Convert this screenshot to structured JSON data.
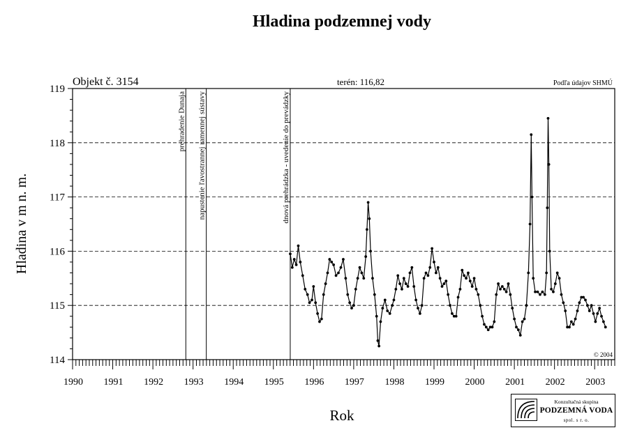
{
  "chart_data": {
    "type": "scatter",
    "title": "Hladina podzemnej vody",
    "ylabel": "Hladina v m n. m.",
    "xlabel": "Rok",
    "object_label": "Objekt č. 3154",
    "terrain_label": "terén: 116,82",
    "source_label": "Podľa údajov SHMÚ",
    "copyright": "© 2004",
    "xlim": [
      1990,
      2003.5
    ],
    "ylim": [
      114,
      119
    ],
    "yticks": [
      114,
      115,
      116,
      117,
      118,
      119
    ],
    "xtick_labels": [
      {
        "x": 1990,
        "label": "1990"
      },
      {
        "x": 1991,
        "label": "1991"
      },
      {
        "x": 1992,
        "label": "1992"
      },
      {
        "x": 1993,
        "label": "1993"
      },
      {
        "x": 1994,
        "label": "1994"
      },
      {
        "x": 1995,
        "label": "1995"
      },
      {
        "x": 1996,
        "label": "1996"
      },
      {
        "x": 1997,
        "label": "1997"
      },
      {
        "x": 1998,
        "label": "1998"
      },
      {
        "x": 1999,
        "label": "1999"
      },
      {
        "x": 2000,
        "label": "2000"
      },
      {
        "x": 2001,
        "label": "2001"
      },
      {
        "x": 2002,
        "label": "2002"
      },
      {
        "x": 2003,
        "label": "2003"
      }
    ],
    "grid": {
      "horizontal_dashed": [
        115,
        116,
        117,
        118
      ]
    },
    "event_lines": [
      {
        "x": 1992.82,
        "label": "prehradenie Dunaja"
      },
      {
        "x": 1993.33,
        "label": "napustenie ľavostrannej ramennej sústavy"
      },
      {
        "x": 1995.42,
        "label": "dnová prehrádzka - uvedenie do prevádzky"
      }
    ],
    "series": [
      {
        "points": [
          [
            1995.42,
            115.95
          ],
          [
            1995.47,
            115.7
          ],
          [
            1995.52,
            115.85
          ],
          [
            1995.57,
            115.75
          ],
          [
            1995.62,
            116.1
          ],
          [
            1995.67,
            115.8
          ],
          [
            1995.73,
            115.55
          ],
          [
            1995.79,
            115.3
          ],
          [
            1995.85,
            115.2
          ],
          [
            1995.9,
            115.05
          ],
          [
            1995.96,
            115.1
          ],
          [
            1996.0,
            115.35
          ],
          [
            1996.05,
            115.05
          ],
          [
            1996.1,
            114.85
          ],
          [
            1996.15,
            114.7
          ],
          [
            1996.2,
            114.75
          ],
          [
            1996.25,
            115.2
          ],
          [
            1996.3,
            115.4
          ],
          [
            1996.35,
            115.6
          ],
          [
            1996.4,
            115.85
          ],
          [
            1996.45,
            115.8
          ],
          [
            1996.5,
            115.75
          ],
          [
            1996.56,
            115.55
          ],
          [
            1996.62,
            115.6
          ],
          [
            1996.68,
            115.7
          ],
          [
            1996.74,
            115.85
          ],
          [
            1996.8,
            115.5
          ],
          [
            1996.85,
            115.2
          ],
          [
            1996.9,
            115.05
          ],
          [
            1996.95,
            114.95
          ],
          [
            1997.0,
            115.0
          ],
          [
            1997.05,
            115.3
          ],
          [
            1997.1,
            115.5
          ],
          [
            1997.15,
            115.7
          ],
          [
            1997.2,
            115.6
          ],
          [
            1997.25,
            115.5
          ],
          [
            1997.3,
            115.9
          ],
          [
            1997.33,
            116.4
          ],
          [
            1997.36,
            116.9
          ],
          [
            1997.39,
            116.6
          ],
          [
            1997.42,
            116.0
          ],
          [
            1997.47,
            115.5
          ],
          [
            1997.52,
            115.2
          ],
          [
            1997.57,
            114.8
          ],
          [
            1997.6,
            114.35
          ],
          [
            1997.63,
            114.25
          ],
          [
            1997.67,
            114.7
          ],
          [
            1997.72,
            114.95
          ],
          [
            1997.78,
            115.1
          ],
          [
            1997.84,
            114.9
          ],
          [
            1997.9,
            114.85
          ],
          [
            1997.96,
            115.0
          ],
          [
            1998.0,
            115.1
          ],
          [
            1998.05,
            115.3
          ],
          [
            1998.1,
            115.55
          ],
          [
            1998.15,
            115.4
          ],
          [
            1998.2,
            115.3
          ],
          [
            1998.25,
            115.5
          ],
          [
            1998.3,
            115.4
          ],
          [
            1998.35,
            115.35
          ],
          [
            1998.4,
            115.6
          ],
          [
            1998.45,
            115.7
          ],
          [
            1998.5,
            115.35
          ],
          [
            1998.55,
            115.1
          ],
          [
            1998.6,
            114.95
          ],
          [
            1998.65,
            114.85
          ],
          [
            1998.7,
            115.0
          ],
          [
            1998.75,
            115.5
          ],
          [
            1998.8,
            115.6
          ],
          [
            1998.85,
            115.55
          ],
          [
            1998.9,
            115.7
          ],
          [
            1998.95,
            116.05
          ],
          [
            1999.0,
            115.8
          ],
          [
            1999.05,
            115.6
          ],
          [
            1999.1,
            115.7
          ],
          [
            1999.15,
            115.5
          ],
          [
            1999.2,
            115.35
          ],
          [
            1999.25,
            115.4
          ],
          [
            1999.3,
            115.45
          ],
          [
            1999.35,
            115.2
          ],
          [
            1999.4,
            115.0
          ],
          [
            1999.45,
            114.85
          ],
          [
            1999.5,
            114.8
          ],
          [
            1999.55,
            114.8
          ],
          [
            1999.6,
            115.15
          ],
          [
            1999.65,
            115.3
          ],
          [
            1999.7,
            115.65
          ],
          [
            1999.75,
            115.55
          ],
          [
            1999.8,
            115.5
          ],
          [
            1999.85,
            115.6
          ],
          [
            1999.9,
            115.45
          ],
          [
            1999.95,
            115.35
          ],
          [
            2000.0,
            115.5
          ],
          [
            2000.05,
            115.3
          ],
          [
            2000.1,
            115.2
          ],
          [
            2000.15,
            115.0
          ],
          [
            2000.2,
            114.8
          ],
          [
            2000.25,
            114.65
          ],
          [
            2000.3,
            114.6
          ],
          [
            2000.35,
            114.55
          ],
          [
            2000.4,
            114.6
          ],
          [
            2000.45,
            114.6
          ],
          [
            2000.5,
            114.7
          ],
          [
            2000.55,
            115.2
          ],
          [
            2000.6,
            115.4
          ],
          [
            2000.65,
            115.3
          ],
          [
            2000.7,
            115.35
          ],
          [
            2000.75,
            115.3
          ],
          [
            2000.8,
            115.25
          ],
          [
            2000.85,
            115.4
          ],
          [
            2000.9,
            115.2
          ],
          [
            2000.95,
            114.95
          ],
          [
            2001.0,
            114.75
          ],
          [
            2001.05,
            114.6
          ],
          [
            2001.1,
            114.55
          ],
          [
            2001.15,
            114.45
          ],
          [
            2001.2,
            114.7
          ],
          [
            2001.25,
            114.75
          ],
          [
            2001.3,
            115.0
          ],
          [
            2001.35,
            115.6
          ],
          [
            2001.39,
            116.5
          ],
          [
            2001.42,
            118.15
          ],
          [
            2001.44,
            117.0
          ],
          [
            2001.47,
            115.5
          ],
          [
            2001.52,
            115.25
          ],
          [
            2001.58,
            115.25
          ],
          [
            2001.64,
            115.2
          ],
          [
            2001.7,
            115.25
          ],
          [
            2001.76,
            115.2
          ],
          [
            2001.8,
            115.6
          ],
          [
            2001.82,
            116.8
          ],
          [
            2001.84,
            118.45
          ],
          [
            2001.86,
            117.6
          ],
          [
            2001.88,
            116.0
          ],
          [
            2001.92,
            115.3
          ],
          [
            2001.97,
            115.25
          ],
          [
            2002.02,
            115.4
          ],
          [
            2002.07,
            115.6
          ],
          [
            2002.12,
            115.5
          ],
          [
            2002.17,
            115.2
          ],
          [
            2002.22,
            115.05
          ],
          [
            2002.27,
            114.9
          ],
          [
            2002.32,
            114.6
          ],
          [
            2002.37,
            114.6
          ],
          [
            2002.42,
            114.7
          ],
          [
            2002.47,
            114.65
          ],
          [
            2002.52,
            114.75
          ],
          [
            2002.57,
            114.9
          ],
          [
            2002.62,
            115.05
          ],
          [
            2002.67,
            115.15
          ],
          [
            2002.72,
            115.15
          ],
          [
            2002.77,
            115.1
          ],
          [
            2002.82,
            115.0
          ],
          [
            2002.87,
            114.9
          ],
          [
            2002.92,
            115.0
          ],
          [
            2002.97,
            114.85
          ],
          [
            2003.02,
            114.7
          ],
          [
            2003.07,
            114.85
          ],
          [
            2003.12,
            114.95
          ],
          [
            2003.17,
            114.8
          ],
          [
            2003.22,
            114.7
          ],
          [
            2003.27,
            114.6
          ]
        ]
      }
    ]
  },
  "logo": {
    "line1": "Konzultačná skupina",
    "line2": "PODZEMNÁ VODA",
    "line3": "spol. s r. o."
  }
}
